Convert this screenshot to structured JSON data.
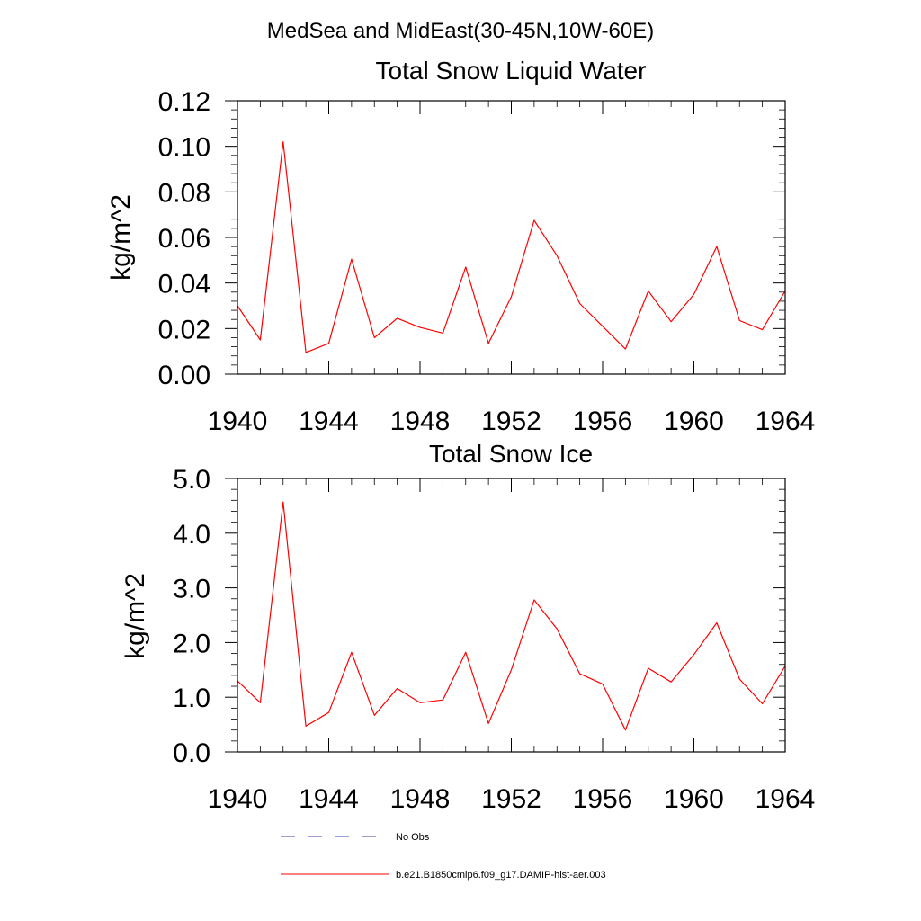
{
  "figure": {
    "title": "MedSea and MidEast(30-45N,10W-60E)"
  },
  "colors": {
    "model_line": "#ff0000",
    "obs_line": "#3b3bb3",
    "axis": "#000000"
  },
  "legend": {
    "placement": "bottom-left",
    "entries": [
      {
        "label": "No Obs",
        "style": "dashed",
        "color": "#3b3bb3"
      },
      {
        "label": "b.e21.B1850cmip6.f09_g17.DAMIP-hist-aer.003",
        "style": "solid",
        "color": "#ff0000"
      }
    ]
  },
  "chart_data": [
    {
      "type": "line",
      "title": "Total Snow Liquid Water",
      "xlabel": "",
      "ylabel": "kg/m^2",
      "xlim": [
        1940,
        1964
      ],
      "ylim": [
        0,
        0.12
      ],
      "grid": false,
      "x_ticks": [
        1940,
        1944,
        1948,
        1952,
        1956,
        1960,
        1964
      ],
      "x_tick_labels": [
        "1940",
        "1944",
        "1948",
        "1952",
        "1956",
        "1960",
        "1964"
      ],
      "y_ticks": [
        0,
        0.02,
        0.04,
        0.06,
        0.08,
        0.1,
        0.12
      ],
      "y_tick_labels": [
        "0.00",
        "0.02",
        "0.04",
        "0.06",
        "0.08",
        "0.10",
        "0.12"
      ],
      "x": [
        1940,
        1941,
        1942,
        1943,
        1944,
        1945,
        1946,
        1947,
        1948,
        1949,
        1950,
        1951,
        1952,
        1953,
        1954,
        1955,
        1956,
        1957,
        1958,
        1959,
        1960,
        1961,
        1962,
        1963,
        1964
      ],
      "series": [
        {
          "name": "b.e21.B1850cmip6.f09_g17.DAMIP-hist-aer.003",
          "color": "#ff0000",
          "values": [
            0.03,
            0.015,
            0.102,
            0.0095,
            0.0135,
            0.0505,
            0.016,
            0.0245,
            0.0205,
            0.018,
            0.047,
            0.0135,
            0.034,
            0.0675,
            0.052,
            0.031,
            0.021,
            0.011,
            0.0365,
            0.023,
            0.035,
            0.056,
            0.0235,
            0.0195,
            0.0365
          ]
        }
      ]
    },
    {
      "type": "line",
      "title": "Total Snow Ice",
      "xlabel": "",
      "ylabel": "kg/m^2",
      "xlim": [
        1940,
        1964
      ],
      "ylim": [
        0,
        5
      ],
      "grid": false,
      "x_ticks": [
        1940,
        1944,
        1948,
        1952,
        1956,
        1960,
        1964
      ],
      "x_tick_labels": [
        "1940",
        "1944",
        "1948",
        "1952",
        "1956",
        "1960",
        "1964"
      ],
      "y_ticks": [
        0,
        1,
        2,
        3,
        4,
        5
      ],
      "y_tick_labels": [
        "0.0",
        "1.0",
        "2.0",
        "3.0",
        "4.0",
        "5.0"
      ],
      "x": [
        1940,
        1941,
        1942,
        1943,
        1944,
        1945,
        1946,
        1947,
        1948,
        1949,
        1950,
        1951,
        1952,
        1953,
        1954,
        1955,
        1956,
        1957,
        1958,
        1959,
        1960,
        1961,
        1962,
        1963,
        1964
      ],
      "series": [
        {
          "name": "b.e21.B1850cmip6.f09_g17.DAMIP-hist-aer.003",
          "color": "#ff0000",
          "values": [
            1.3,
            0.9,
            4.57,
            0.47,
            0.72,
            1.82,
            0.67,
            1.16,
            0.9,
            0.95,
            1.82,
            0.52,
            1.5,
            2.78,
            2.25,
            1.43,
            1.24,
            0.4,
            1.53,
            1.28,
            1.78,
            2.36,
            1.33,
            0.88,
            1.57
          ]
        }
      ]
    }
  ]
}
